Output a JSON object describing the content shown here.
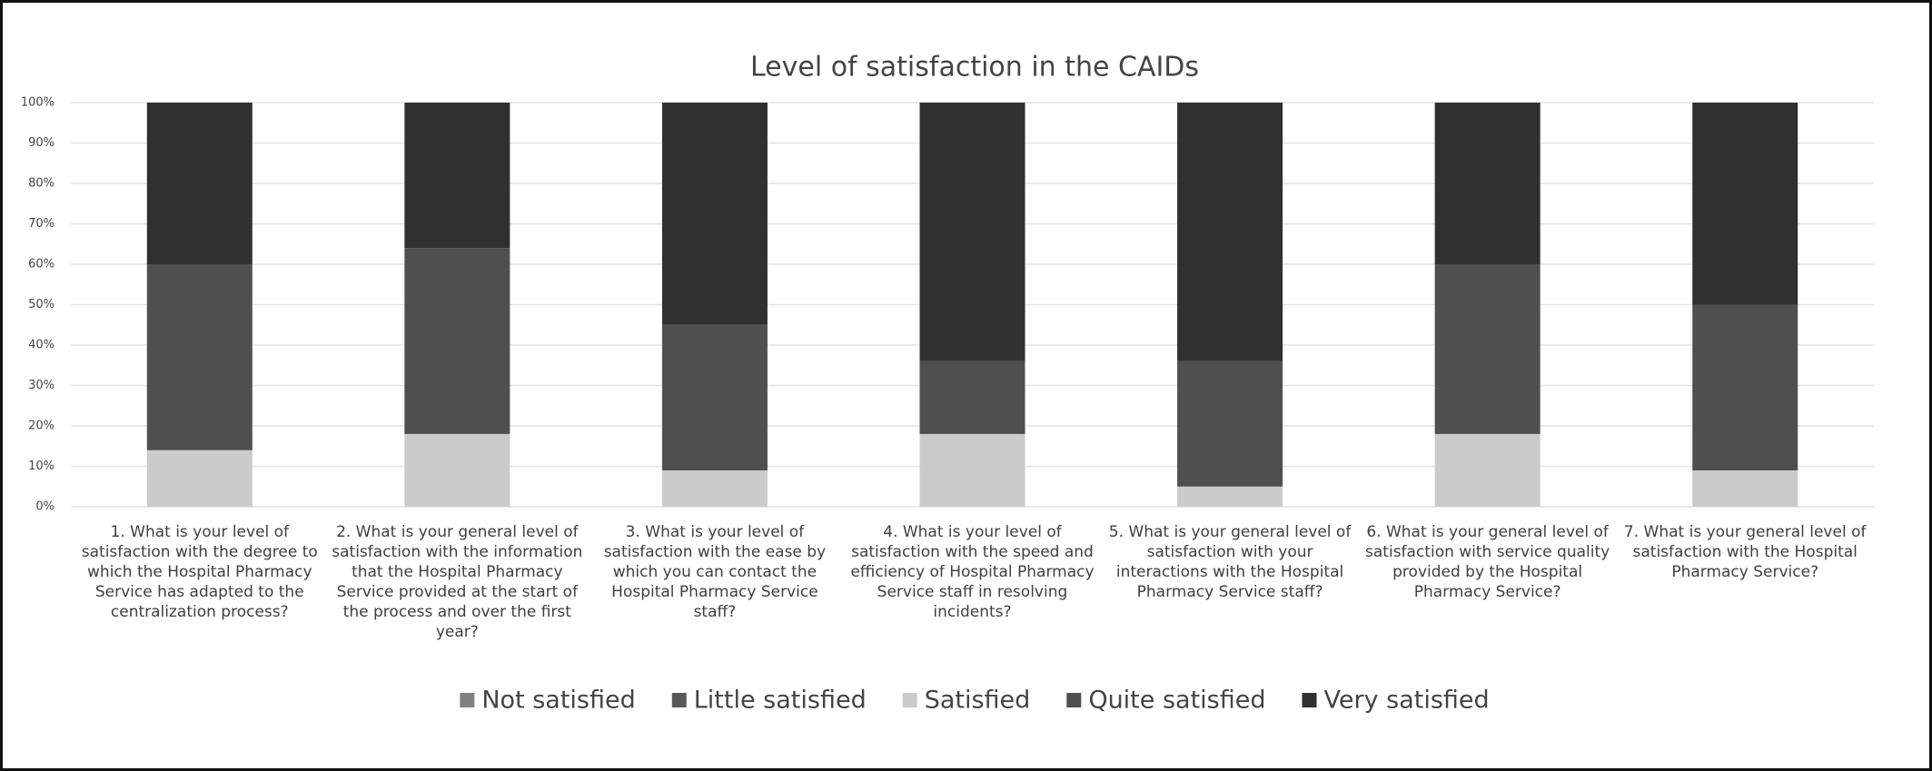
{
  "chart_data": {
    "type": "stacked_bar",
    "title": "Level of satisfaction in the CAIDs",
    "categories": [
      "1. What is your level of satisfaction with the degree to which the Hospital Pharmacy Service has adapted to the centralization process?",
      "2. What is your general level of satisfaction with the information that the Hospital Pharmacy Service provided at the start of the process and over the first year?",
      "3. What is your level of satisfaction with the ease by which you can contact the Hospital Pharmacy Service staff?",
      "4. What is your level of satisfaction with the speed and efficiency of Hospital Pharmacy Service staff in resolving incidents?",
      "5. What is your general level of satisfaction with your interactions with the Hospital Pharmacy Service staff?",
      "6. What is your general level of satisfaction with service quality provided by the Hospital Pharmacy Service?",
      "7. What is your general level of satisfaction with the Hospital Pharmacy Service?"
    ],
    "series": [
      {
        "name": "Not satisfied",
        "color": "#808080",
        "values": [
          0,
          0,
          0,
          0,
          0,
          0,
          0
        ]
      },
      {
        "name": "Little satisfied",
        "color": "#595959",
        "values": [
          0,
          0,
          0,
          0,
          0,
          0,
          0
        ]
      },
      {
        "name": "Satisfied",
        "color": "#cbcbcb",
        "values": [
          14,
          18,
          9,
          18,
          5,
          18,
          9
        ]
      },
      {
        "name": "Quite satisfied",
        "color": "#4f4f4f",
        "values": [
          46,
          46,
          36,
          18,
          31,
          42,
          41
        ]
      },
      {
        "name": "Very satisfied",
        "color": "#303030",
        "values": [
          40,
          36,
          55,
          64,
          64,
          40,
          50
        ]
      }
    ],
    "ylim": [
      0,
      100
    ],
    "yticks": [
      {
        "value": 0,
        "label": "0%"
      },
      {
        "value": 10,
        "label": "10%"
      },
      {
        "value": 20,
        "label": "20%"
      },
      {
        "value": 30,
        "label": "30%"
      },
      {
        "value": 40,
        "label": "40%"
      },
      {
        "value": 50,
        "label": "50%"
      },
      {
        "value": 60,
        "label": "60%"
      },
      {
        "value": 70,
        "label": "70%"
      },
      {
        "value": 80,
        "label": "80%"
      },
      {
        "value": 90,
        "label": "90%"
      },
      {
        "value": 100,
        "label": "100%"
      }
    ],
    "grid": true,
    "legend": "bottom"
  }
}
